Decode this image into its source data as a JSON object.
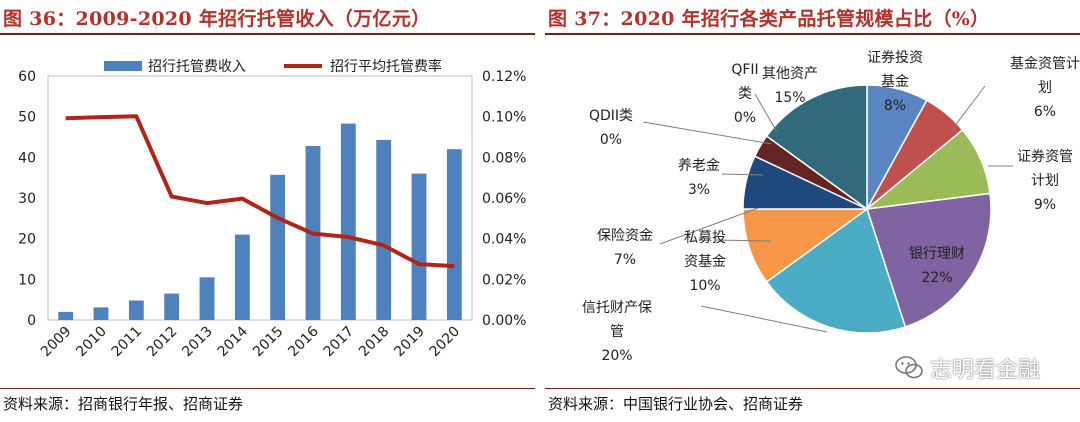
{
  "left": {
    "title": "图 36：2009-2020 年招行托管收入（万亿元）",
    "source": "资料来源：招商银行年报、招商证券",
    "chart_data": {
      "type": "bar+line",
      "categories": [
        "2009",
        "2010",
        "2011",
        "2012",
        "2013",
        "2014",
        "2015",
        "2016",
        "2017",
        "2018",
        "2019",
        "2020"
      ],
      "series": [
        {
          "name": "招行托管费收入",
          "type": "bar",
          "axis": "left",
          "color": "#4f81bd",
          "values": [
            2.0,
            3.1,
            4.8,
            6.5,
            10.5,
            21.0,
            35.7,
            42.8,
            48.3,
            44.3,
            36.0,
            42.0
          ]
        },
        {
          "name": "招行平均托管费率",
          "type": "line",
          "axis": "right",
          "color": "#b22418",
          "values": [
            0.0992,
            0.0998,
            0.1002,
            0.0607,
            0.0575,
            0.0597,
            0.0502,
            0.0425,
            0.0408,
            0.0367,
            0.0275,
            0.0265
          ]
        }
      ],
      "yLeft": {
        "min": 0,
        "max": 60,
        "ticks": [
          "0",
          "10",
          "20",
          "30",
          "40",
          "50",
          "60"
        ]
      },
      "yRight": {
        "min": 0,
        "max": 0.12,
        "ticks": [
          "0.00%",
          "0.02%",
          "0.04%",
          "0.06%",
          "0.08%",
          "0.10%",
          "0.12%"
        ]
      }
    }
  },
  "right": {
    "title": "图 37：2020 年招行各类产品托管规模占比（%）",
    "source": "资料来源：中国银行业协会、招商证券",
    "watermark": "志明看金融",
    "chart_data": {
      "type": "pie",
      "slices": [
        {
          "name": "证券投资基金",
          "label_lines": [
            "证券投资",
            "基金"
          ],
          "value_label": "8%",
          "value": 8,
          "color": "#5b84c3"
        },
        {
          "name": "基金资管计划",
          "label_lines": [
            "基金资管计",
            "划"
          ],
          "value_label": "6%",
          "value": 6,
          "color": "#c0504d"
        },
        {
          "name": "证券资管计划",
          "label_lines": [
            "证券资管",
            "计划"
          ],
          "value_label": "9%",
          "value": 9,
          "color": "#9bbb59"
        },
        {
          "name": "银行理财",
          "label_lines": [
            "银行理财"
          ],
          "value_label": "22%",
          "value": 22,
          "color": "#8064a2"
        },
        {
          "name": "信托财产保管",
          "label_lines": [
            "信托财产保",
            "管"
          ],
          "value_label": "20%",
          "value": 20,
          "color": "#4bacc6"
        },
        {
          "name": "私募投资基金",
          "label_lines": [
            "私募投",
            "资基金"
          ],
          "value_label": "10%",
          "value": 10,
          "color": "#f79646"
        },
        {
          "name": "保险资金",
          "label_lines": [
            "保险资金"
          ],
          "value_label": "7%",
          "value": 7,
          "color": "#1f497d"
        },
        {
          "name": "养老金",
          "label_lines": [
            "养老金"
          ],
          "value_label": "3%",
          "value": 3,
          "color": "#632523"
        },
        {
          "name": "QDII类",
          "label_lines": [
            "QDII类"
          ],
          "value_label": "0%",
          "value": 0,
          "color": "#777777"
        },
        {
          "name": "QFII类",
          "label_lines": [
            "QFII",
            "类"
          ],
          "value_label": "0%",
          "value": 0,
          "color": "#777777"
        },
        {
          "name": "其他资产",
          "label_lines": [
            "其他资产"
          ],
          "value_label": "15%",
          "value": 15,
          "color": "#31697d"
        }
      ]
    }
  }
}
